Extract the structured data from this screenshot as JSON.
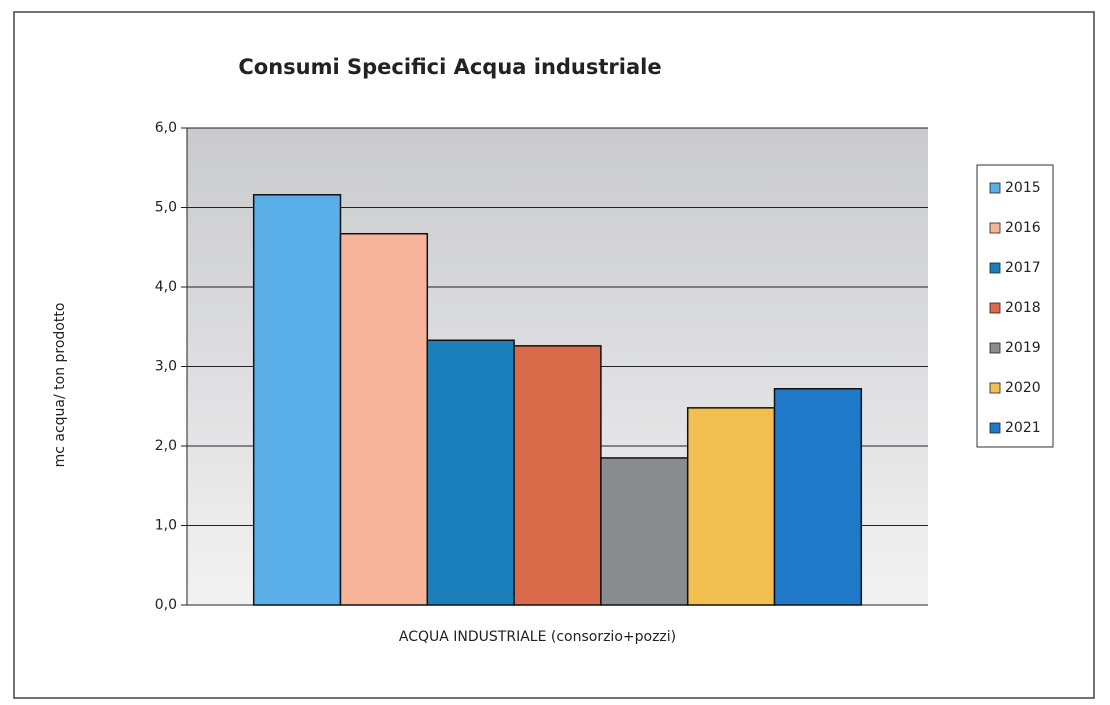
{
  "chart_data": {
    "type": "bar",
    "title": "Consumi Specifici Acqua industriale",
    "y_label": "mc acqua/ ton prodotto",
    "categories": [
      "ACQUA INDUSTRIALE (consorzio+pozzi)"
    ],
    "series": [
      {
        "name": "2015",
        "color": "#5aafe8",
        "values": [
          5.16
        ]
      },
      {
        "name": "2016",
        "color": "#f8b49a",
        "values": [
          4.67
        ]
      },
      {
        "name": "2017",
        "color": "#1a7fba",
        "values": [
          3.33
        ]
      },
      {
        "name": "2018",
        "color": "#d96a4a",
        "values": [
          3.26
        ]
      },
      {
        "name": "2019",
        "color": "#8a8d8f",
        "values": [
          1.85
        ]
      },
      {
        "name": "2020",
        "color": "#f2c050",
        "values": [
          2.48
        ]
      },
      {
        "name": "2021",
        "color": "#1f78c8",
        "values": [
          2.72
        ]
      }
    ],
    "ylim": [
      0,
      6
    ],
    "yticks": [
      {
        "value": 0,
        "label": "0,0"
      },
      {
        "value": 1,
        "label": "1,0"
      },
      {
        "value": 2,
        "label": "2,0"
      },
      {
        "value": 3,
        "label": "3,0"
      },
      {
        "value": 4,
        "label": "4,0"
      },
      {
        "value": 5,
        "label": "5,0"
      },
      {
        "value": 6,
        "label": "6,0"
      }
    ],
    "grid": true,
    "legend": "right"
  }
}
